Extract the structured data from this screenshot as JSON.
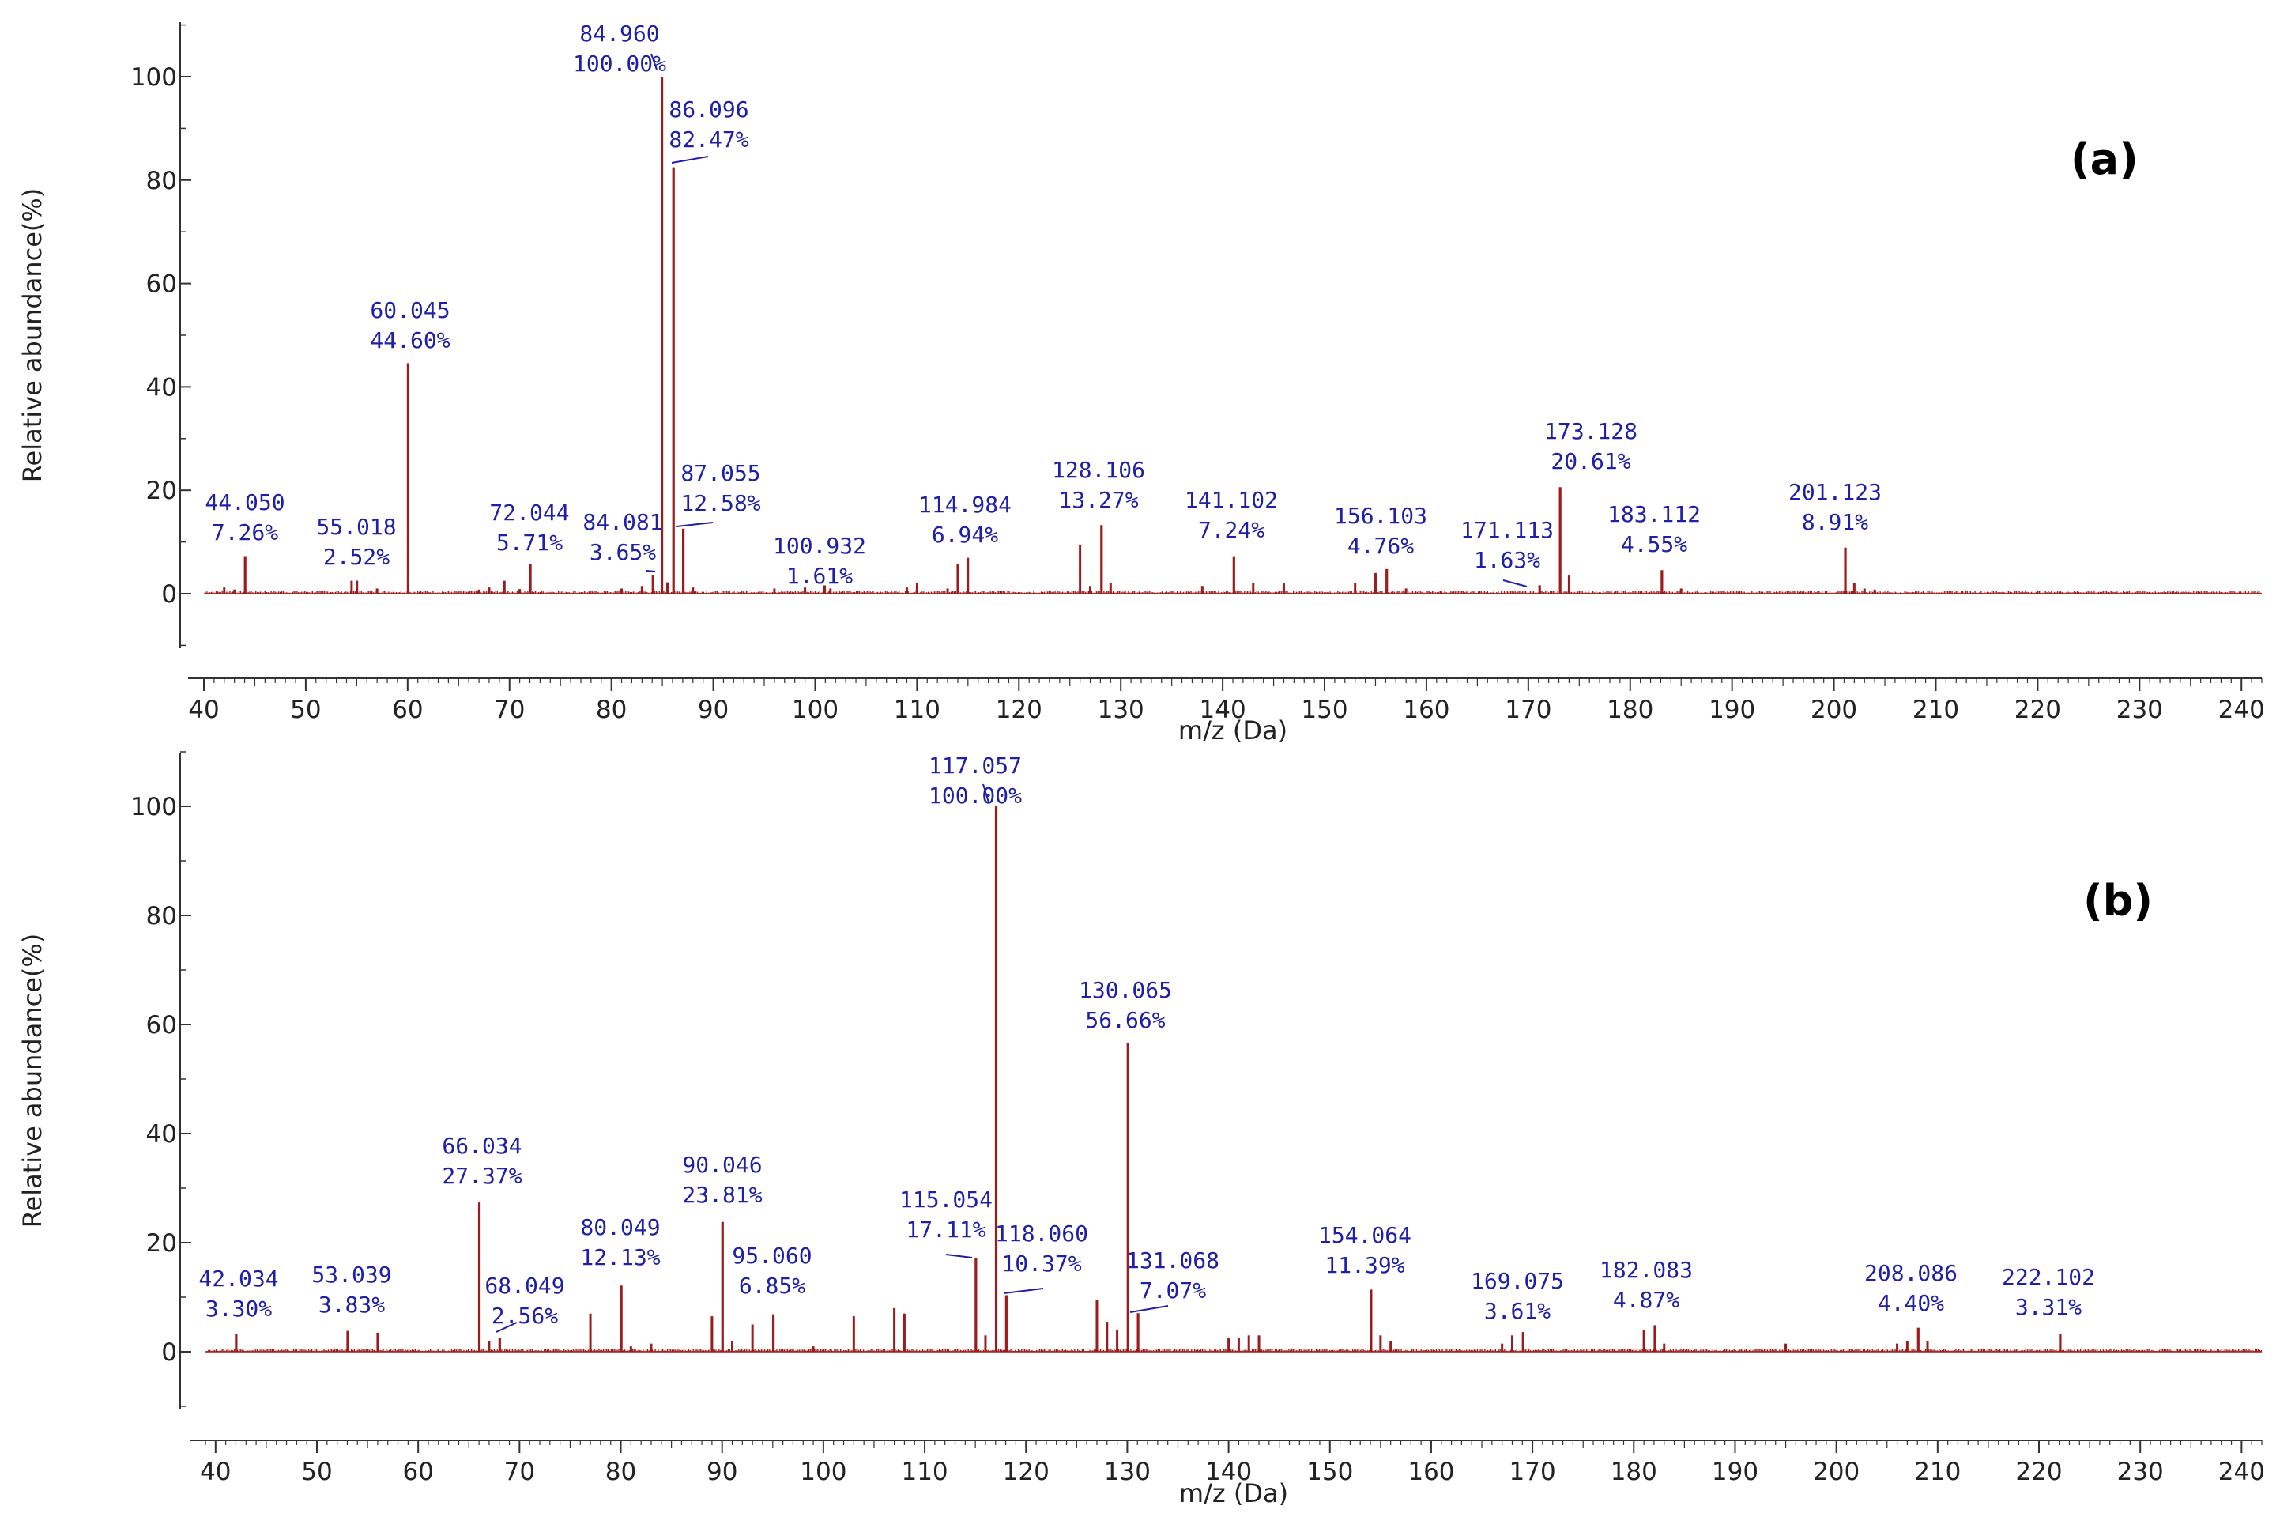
{
  "colors": {
    "spectrum": "#9b1c1c",
    "label": "#1f1fa8",
    "axis": "#333333"
  },
  "chart_data": [
    {
      "type": "bar",
      "panel": "(a)",
      "xlabel": "m/z (Da)",
      "ylabel": "Relative abundance(%)",
      "xlim": [
        40,
        242
      ],
      "ylim": [
        -10,
        110
      ],
      "xticks": [
        40,
        50,
        60,
        70,
        80,
        90,
        100,
        110,
        120,
        130,
        140,
        150,
        160,
        170,
        180,
        190,
        200,
        210,
        220,
        230,
        240
      ],
      "yticks": [
        0,
        20,
        40,
        60,
        80,
        100
      ],
      "labeled_peaks": [
        {
          "mz": "44.050",
          "pct": "7.26%",
          "x": 44.05,
          "y": 7.26
        },
        {
          "mz": "55.018",
          "pct": "2.52%",
          "x": 55.018,
          "y": 2.52
        },
        {
          "mz": "60.045",
          "pct": "44.60%",
          "x": 60.045,
          "y": 44.6
        },
        {
          "mz": "72.044",
          "pct": "5.71%",
          "x": 72.044,
          "y": 5.71
        },
        {
          "mz": "84.081",
          "pct": "3.65%",
          "x": 84.081,
          "y": 3.65
        },
        {
          "mz": "84.960",
          "pct": "100.00%",
          "x": 84.96,
          "y": 100.0
        },
        {
          "mz": "86.096",
          "pct": "82.47%",
          "x": 86.096,
          "y": 82.47
        },
        {
          "mz": "87.055",
          "pct": "12.58%",
          "x": 87.055,
          "y": 12.58
        },
        {
          "mz": "100.932",
          "pct": "1.61%",
          "x": 100.932,
          "y": 1.61
        },
        {
          "mz": "114.984",
          "pct": "6.94%",
          "x": 114.984,
          "y": 6.94
        },
        {
          "mz": "128.106",
          "pct": "13.27%",
          "x": 128.106,
          "y": 13.27
        },
        {
          "mz": "141.102",
          "pct": "7.24%",
          "x": 141.102,
          "y": 7.24
        },
        {
          "mz": "156.103",
          "pct": "4.76%",
          "x": 156.103,
          "y": 4.76
        },
        {
          "mz": "171.113",
          "pct": "1.63%",
          "x": 171.113,
          "y": 1.63
        },
        {
          "mz": "173.128",
          "pct": "20.61%",
          "x": 173.128,
          "y": 20.61
        },
        {
          "mz": "183.112",
          "pct": "4.55%",
          "x": 183.112,
          "y": 4.55
        },
        {
          "mz": "201.123",
          "pct": "8.91%",
          "x": 201.123,
          "y": 8.91
        }
      ],
      "minor_peaks": [
        [
          42.0,
          1.2
        ],
        [
          43.0,
          0.8
        ],
        [
          54.5,
          2.5
        ],
        [
          57.0,
          1.0
        ],
        [
          67.0,
          0.8
        ],
        [
          68.0,
          1.2
        ],
        [
          69.5,
          2.5
        ],
        [
          71.0,
          0.9
        ],
        [
          81.0,
          1.0
        ],
        [
          83.0,
          1.5
        ],
        [
          85.5,
          2.2
        ],
        [
          88.0,
          1.2
        ],
        [
          96.0,
          1.0
        ],
        [
          99.0,
          1.2
        ],
        [
          101.5,
          1.0
        ],
        [
          109.0,
          1.2
        ],
        [
          110.0,
          2.0
        ],
        [
          113.0,
          1.0
        ],
        [
          114.0,
          5.7
        ],
        [
          126.0,
          9.5
        ],
        [
          127.0,
          1.5
        ],
        [
          129.0,
          2.0
        ],
        [
          138.0,
          1.5
        ],
        [
          143.0,
          2.0
        ],
        [
          146.0,
          2.0
        ],
        [
          153.0,
          2.0
        ],
        [
          155.0,
          4.0
        ],
        [
          158.0,
          1.0
        ],
        [
          174.0,
          3.5
        ],
        [
          185.0,
          1.0
        ],
        [
          202.0,
          2.0
        ],
        [
          203.0,
          1.0
        ],
        [
          204.0,
          0.8
        ]
      ]
    },
    {
      "type": "bar",
      "panel": "(b)",
      "xlabel": "m/z (Da)",
      "ylabel": "Relative abundance(%)",
      "xlim": [
        39,
        242
      ],
      "ylim": [
        -10,
        110
      ],
      "xticks": [
        40,
        50,
        60,
        70,
        80,
        90,
        100,
        110,
        120,
        130,
        140,
        150,
        160,
        170,
        180,
        190,
        200,
        210,
        220,
        230,
        240
      ],
      "yticks": [
        0,
        20,
        40,
        60,
        80,
        100
      ],
      "labeled_peaks": [
        {
          "mz": "42.034",
          "pct": "3.30%",
          "x": 42.034,
          "y": 3.3
        },
        {
          "mz": "53.039",
          "pct": "3.83%",
          "x": 53.039,
          "y": 3.83
        },
        {
          "mz": "66.034",
          "pct": "27.37%",
          "x": 66.034,
          "y": 27.37
        },
        {
          "mz": "68.049",
          "pct": "2.56%",
          "x": 68.049,
          "y": 2.56
        },
        {
          "mz": "80.049",
          "pct": "12.13%",
          "x": 80.049,
          "y": 12.13
        },
        {
          "mz": "90.046",
          "pct": "23.81%",
          "x": 90.046,
          "y": 23.81
        },
        {
          "mz": "95.060",
          "pct": "6.85%",
          "x": 95.06,
          "y": 6.85
        },
        {
          "mz": "115.054",
          "pct": "17.11%",
          "x": 115.054,
          "y": 17.11
        },
        {
          "mz": "117.057",
          "pct": "100.00%",
          "x": 117.057,
          "y": 100.0
        },
        {
          "mz": "118.060",
          "pct": "10.37%",
          "x": 118.06,
          "y": 10.37
        },
        {
          "mz": "130.065",
          "pct": "56.66%",
          "x": 130.065,
          "y": 56.66
        },
        {
          "mz": "131.068",
          "pct": "7.07%",
          "x": 131.068,
          "y": 7.07
        },
        {
          "mz": "154.064",
          "pct": "11.39%",
          "x": 154.064,
          "y": 11.39
        },
        {
          "mz": "169.075",
          "pct": "3.61%",
          "x": 169.075,
          "y": 3.61
        },
        {
          "mz": "182.083",
          "pct": "4.87%",
          "x": 182.083,
          "y": 4.87
        },
        {
          "mz": "208.086",
          "pct": "4.40%",
          "x": 208.086,
          "y": 4.4
        },
        {
          "mz": "222.102",
          "pct": "3.31%",
          "x": 222.102,
          "y": 3.31
        }
      ],
      "minor_peaks": [
        [
          56.0,
          3.5
        ],
        [
          67.0,
          2.0
        ],
        [
          77.0,
          7.0
        ],
        [
          81.0,
          1.0
        ],
        [
          83.0,
          1.5
        ],
        [
          89.0,
          6.5
        ],
        [
          91.0,
          2.0
        ],
        [
          93.0,
          5.0
        ],
        [
          99.0,
          1.0
        ],
        [
          103.0,
          6.5
        ],
        [
          107.0,
          8.0
        ],
        [
          108.0,
          7.0
        ],
        [
          116.0,
          3.0
        ],
        [
          127.0,
          9.5
        ],
        [
          128.0,
          5.5
        ],
        [
          129.0,
          4.0
        ],
        [
          140.0,
          2.5
        ],
        [
          141.0,
          2.5
        ],
        [
          142.0,
          3.0
        ],
        [
          143.0,
          3.0
        ],
        [
          155.0,
          3.0
        ],
        [
          156.0,
          2.0
        ],
        [
          167.0,
          1.5
        ],
        [
          168.0,
          3.0
        ],
        [
          181.0,
          4.0
        ],
        [
          183.0,
          1.5
        ],
        [
          195.0,
          1.5
        ],
        [
          206.0,
          1.5
        ],
        [
          207.0,
          2.0
        ],
        [
          209.0,
          2.0
        ]
      ]
    }
  ]
}
